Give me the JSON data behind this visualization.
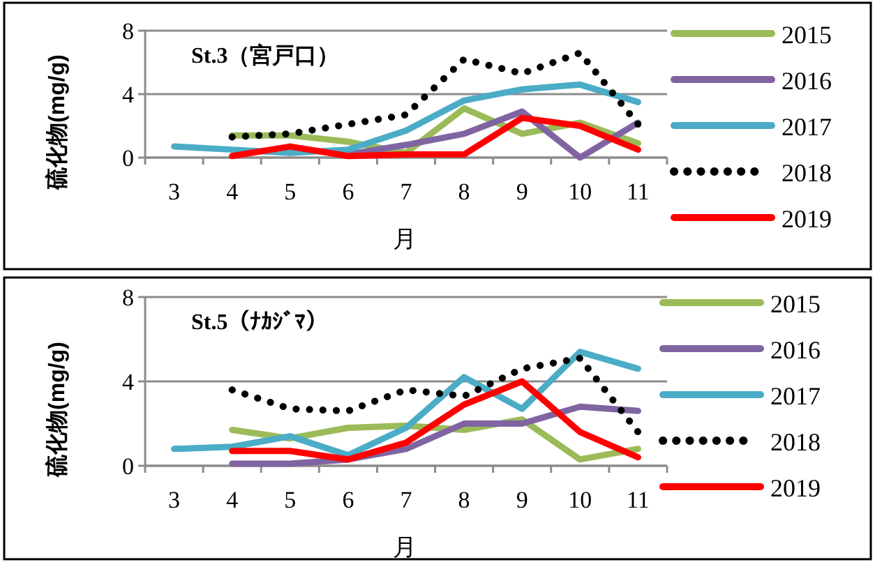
{
  "chart_data": [
    {
      "type": "line",
      "title": "St.3（宮戸口）",
      "xlabel": "月",
      "ylabel": "硫化物(mg/g)",
      "categories": [
        "3",
        "4",
        "5",
        "6",
        "7",
        "8",
        "9",
        "10",
        "11"
      ],
      "ylim": [
        0,
        8
      ],
      "yticks": [
        0,
        4,
        8
      ],
      "grid": "y",
      "legend": "right",
      "marker": "none",
      "line_style": "solid",
      "series": [
        {
          "name": "2015",
          "color": "#9bbb59",
          "values": [
            null,
            1.4,
            1.4,
            1.0,
            0.3,
            3.1,
            1.5,
            2.2,
            0.9
          ]
        },
        {
          "name": "2016",
          "color": "#8064a2",
          "values": [
            null,
            null,
            null,
            0.2,
            0.8,
            1.5,
            2.9,
            0.0,
            2.2
          ]
        },
        {
          "name": "2017",
          "color": "#4bacc6",
          "values": [
            0.7,
            0.5,
            0.3,
            0.5,
            1.7,
            3.6,
            4.3,
            4.6,
            3.5
          ]
        },
        {
          "name": "2018",
          "color": "#000000",
          "line_style": "dotted",
          "values": [
            null,
            1.3,
            1.5,
            2.1,
            2.7,
            6.2,
            5.3,
            6.6,
            2.1
          ]
        },
        {
          "name": "2019",
          "color": "#ff0000",
          "values": [
            null,
            0.1,
            0.7,
            0.1,
            0.2,
            0.2,
            2.5,
            2.0,
            0.5
          ]
        }
      ]
    },
    {
      "type": "line",
      "title": "St.5（ﾅｶｼﾞﾏ）",
      "xlabel": "月",
      "ylabel": "硫化物(mg/g)",
      "categories": [
        "3",
        "4",
        "5",
        "6",
        "7",
        "8",
        "9",
        "10",
        "11"
      ],
      "ylim": [
        0,
        8
      ],
      "yticks": [
        0,
        4,
        8
      ],
      "grid": "y",
      "legend": "right",
      "marker": "none",
      "line_style": "solid",
      "series": [
        {
          "name": "2015",
          "color": "#9bbb59",
          "values": [
            null,
            1.7,
            1.3,
            1.8,
            1.9,
            1.7,
            2.2,
            0.3,
            0.8
          ]
        },
        {
          "name": "2016",
          "color": "#8064a2",
          "values": [
            null,
            0.1,
            0.1,
            0.3,
            0.8,
            2.0,
            2.0,
            2.8,
            2.6
          ]
        },
        {
          "name": "2017",
          "color": "#4bacc6",
          "values": [
            0.8,
            0.9,
            1.4,
            0.5,
            1.8,
            4.2,
            2.7,
            5.4,
            4.6
          ]
        },
        {
          "name": "2018",
          "color": "#000000",
          "line_style": "dotted",
          "values": [
            null,
            3.6,
            2.7,
            2.6,
            3.6,
            3.3,
            4.6,
            5.1,
            1.6
          ]
        },
        {
          "name": "2019",
          "color": "#ff0000",
          "values": [
            null,
            0.7,
            0.7,
            0.3,
            1.1,
            2.9,
            4.0,
            1.6,
            0.4
          ]
        }
      ]
    }
  ]
}
